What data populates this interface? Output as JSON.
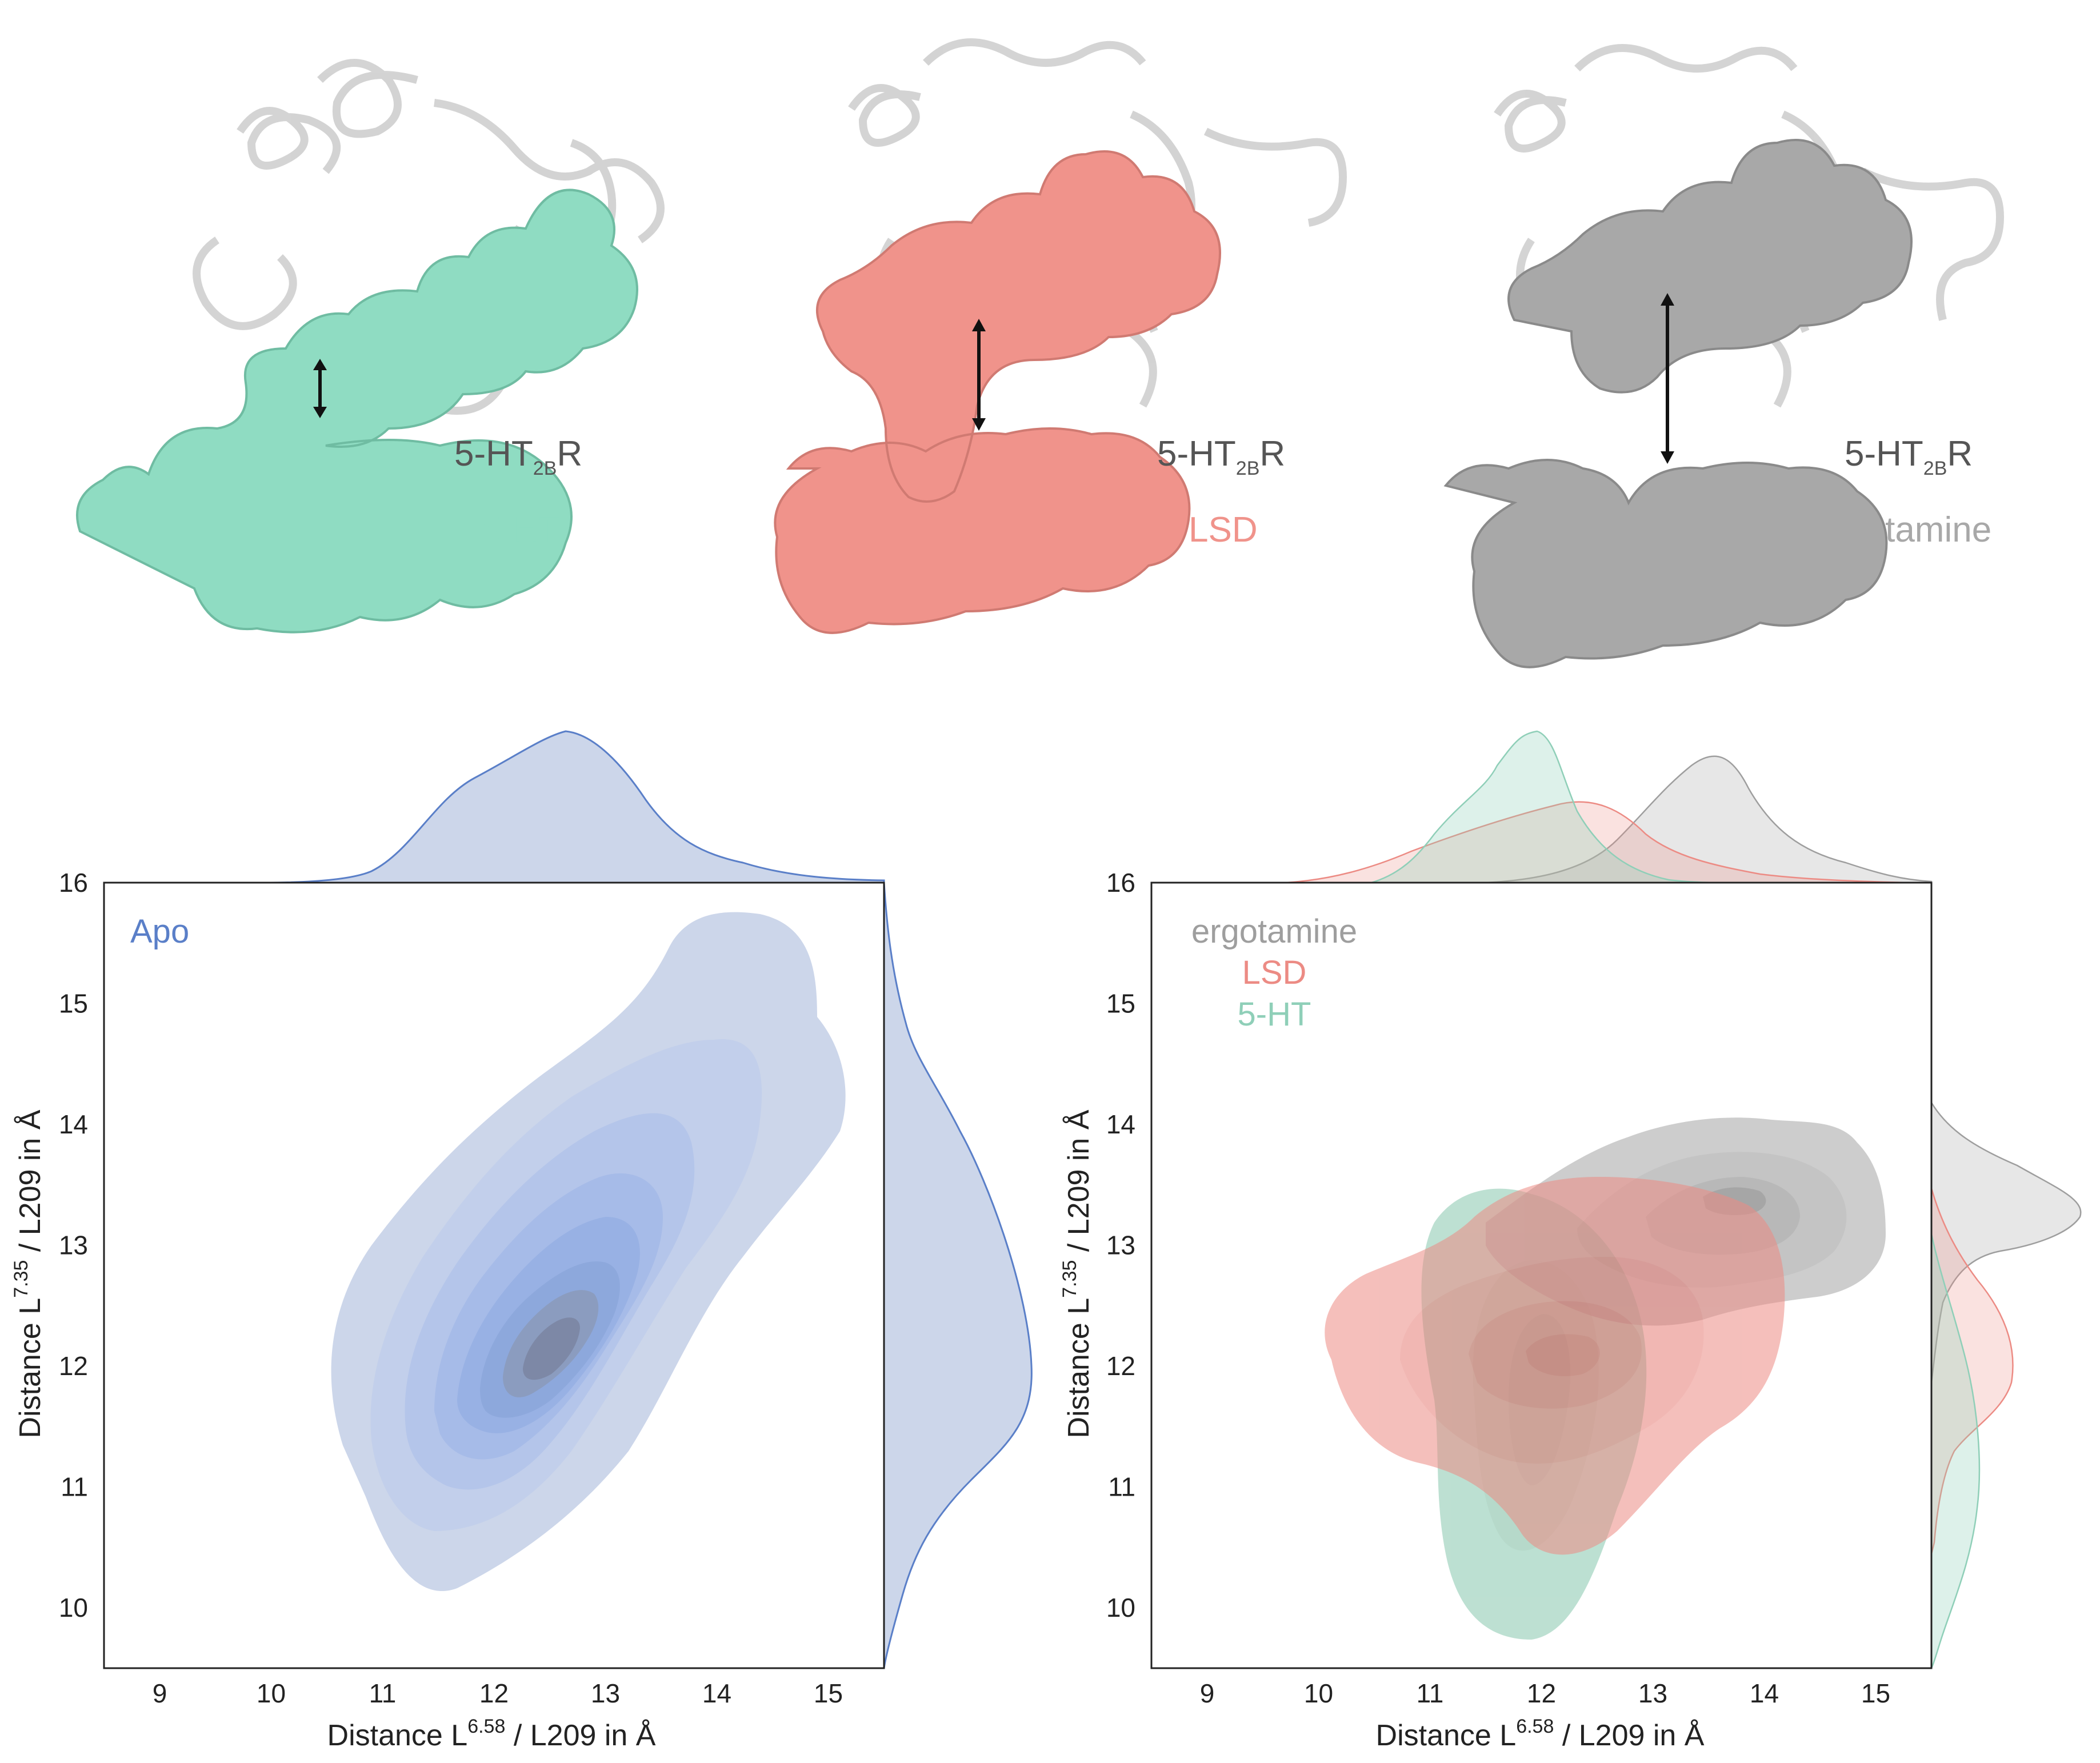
{
  "structures": [
    {
      "receptor": "5-HT",
      "receptor_sub": "2B",
      "receptor_suffix": "R",
      "ligand": "5-HT",
      "color": "#8fdcc2"
    },
    {
      "receptor": "5-HT",
      "receptor_sub": "2B",
      "receptor_suffix": "R",
      "ligand": "LSD",
      "color": "#f0938b"
    },
    {
      "receptor": "5-HT",
      "receptor_sub": "2B",
      "receptor_suffix": "R",
      "ligand": "ergotamine",
      "color": "#a8a8a8"
    }
  ],
  "colors": {
    "apo": "#5a7fc8",
    "fiveht": "#8fcfb8",
    "lsd": "#ec8b84",
    "ergotamine": "#9e9e9e"
  },
  "chart_data": [
    {
      "type": "kde2d",
      "legend": [
        "Apo"
      ],
      "xlabel": {
        "pre": "Distance L",
        "sup": "6.58",
        "post": " / L209 in Å"
      },
      "ylabel": {
        "pre": "Distance L",
        "sup": "7.35",
        "post": " / L209 in Å"
      },
      "xlim": [
        8.5,
        15.5
      ],
      "ylim": [
        9.5,
        16
      ],
      "xticks": [
        "9",
        "10",
        "11",
        "12",
        "13",
        "14",
        "15"
      ],
      "yticks": [
        "10",
        "11",
        "12",
        "13",
        "14",
        "15",
        "16"
      ],
      "series": [
        {
          "name": "Apo",
          "center": [
            12.5,
            12.3
          ],
          "density_peak_x": 12.7,
          "density_peak_y": 12.0
        }
      ]
    },
    {
      "type": "kde2d",
      "legend": [
        "ergotamine",
        "LSD",
        "5-HT"
      ],
      "xlabel": {
        "pre": "Distance L",
        "sup": "6.58",
        "post": " / L209 in Å"
      },
      "ylabel": {
        "pre": "Distance L",
        "sup": "7.35",
        "post": " / L209 in Å"
      },
      "xlim": [
        8.5,
        15.5
      ],
      "ylim": [
        9.5,
        16
      ],
      "xticks": [
        "9",
        "10",
        "11",
        "12",
        "13",
        "14",
        "15"
      ],
      "yticks": [
        "10",
        "11",
        "12",
        "13",
        "14",
        "15",
        "16"
      ],
      "series": [
        {
          "name": "ergotamine",
          "center": [
            13.4,
            13.4
          ],
          "density_peak_x": 13.4,
          "density_peak_y": 13.3
        },
        {
          "name": "LSD",
          "center": [
            12.4,
            12.1
          ],
          "density_peak_x": 12.5,
          "density_peak_y": 12.0
        },
        {
          "name": "5-HT",
          "center": [
            11.9,
            11.2
          ],
          "density_peak_x": 11.9,
          "density_peak_y": 11.7
        }
      ]
    }
  ]
}
